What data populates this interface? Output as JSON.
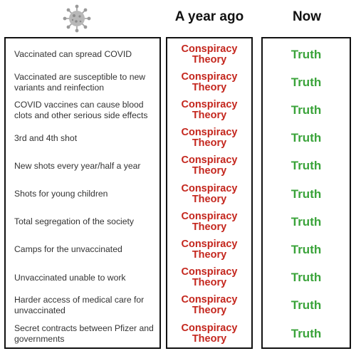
{
  "header": {
    "icon": "coronavirus-icon",
    "col_ago": "A year ago",
    "col_now": "Now"
  },
  "colors": {
    "conspiracy": "#c4261d",
    "truth": "#3aa33a",
    "border": "#111111"
  },
  "rows": [
    {
      "claim": "Vaccinated can spread COVID",
      "ago": "Conspiracy Theory",
      "now": "Truth"
    },
    {
      "claim": "Vaccinated are susceptible to new variants and reinfection",
      "ago": "Conspiracy Theory",
      "now": "Truth"
    },
    {
      "claim": "COVID vaccines can cause blood clots and other serious side effects",
      "ago": "Conspiracy Theory",
      "now": "Truth"
    },
    {
      "claim": "3rd and 4th shot",
      "ago": "Conspiracy Theory",
      "now": "Truth"
    },
    {
      "claim": "New shots every year/half a year",
      "ago": "Conspiracy Theory",
      "now": "Truth"
    },
    {
      "claim": "Shots for young children",
      "ago": "Conspiracy Theory",
      "now": "Truth"
    },
    {
      "claim": "Total segregation of the society",
      "ago": "Conspiracy Theory",
      "now": "Truth"
    },
    {
      "claim": "Camps for the unvaccinated",
      "ago": "Conspiracy Theory",
      "now": "Truth"
    },
    {
      "claim": "Unvaccinated unable to work",
      "ago": "Conspiracy Theory",
      "now": "Truth"
    },
    {
      "claim": "Harder access of medical care for unvaccinated",
      "ago": "Conspiracy Theory",
      "now": "Truth"
    },
    {
      "claim": "Secret contracts between Pfizer and governments",
      "ago": "Conspiracy Theory",
      "now": "Truth"
    }
  ]
}
